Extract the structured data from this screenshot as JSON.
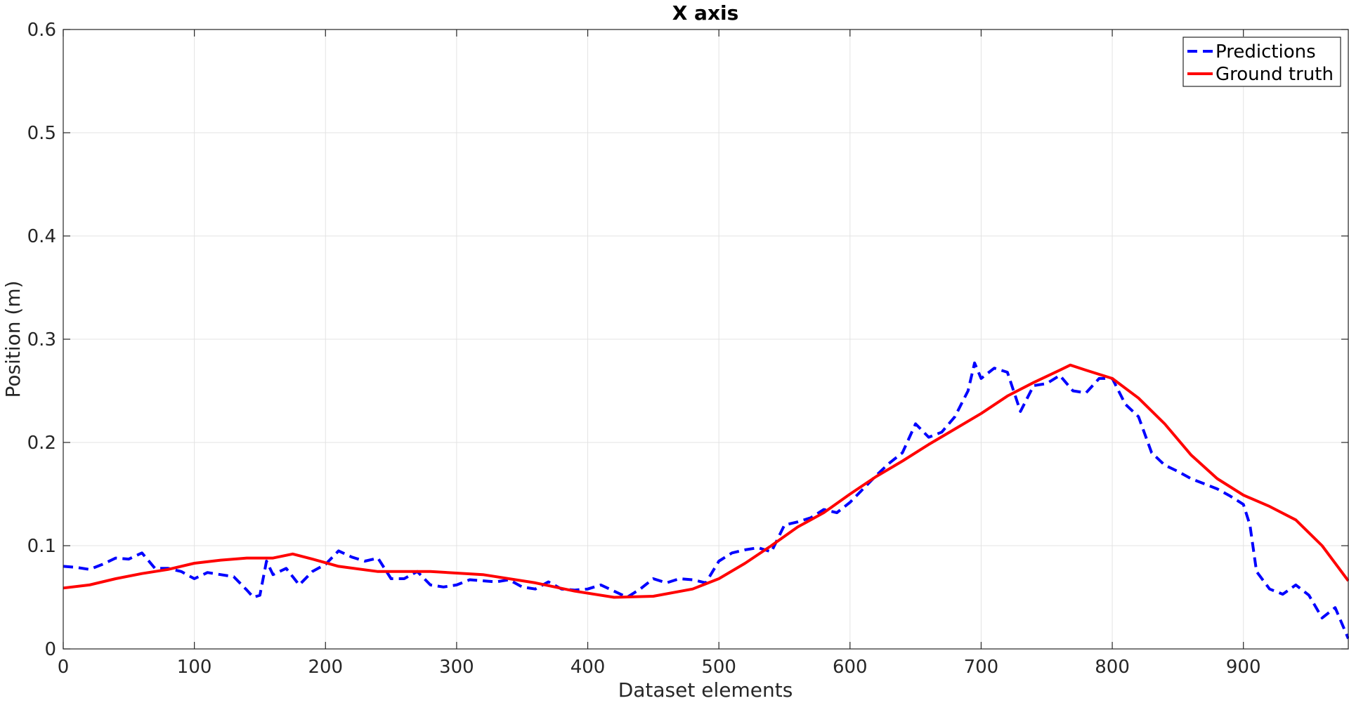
{
  "chart_data": {
    "type": "line",
    "title": "X axis",
    "xlabel": "Dataset elements",
    "ylabel": "Position (m)",
    "xlim": [
      0,
      980
    ],
    "ylim": [
      0,
      0.6
    ],
    "xticks": [
      0,
      100,
      200,
      300,
      400,
      500,
      600,
      700,
      800,
      900
    ],
    "xtick_labels": [
      "0",
      "100",
      "200",
      "300",
      "400",
      "500",
      "600",
      "700",
      "800",
      "900"
    ],
    "yticks": [
      0,
      0.1,
      0.2,
      0.3,
      0.4,
      0.5,
      0.6
    ],
    "ytick_labels": [
      "0",
      "0.1",
      "0.2",
      "0.3",
      "0.4",
      "0.5",
      "0.6"
    ],
    "grid": true,
    "legend_position": "top-right",
    "series": [
      {
        "name": "Predictions",
        "color": "#0000ff",
        "style": "dashed",
        "x": [
          0,
          10,
          20,
          30,
          40,
          50,
          60,
          70,
          80,
          90,
          100,
          110,
          120,
          130,
          140,
          145,
          150,
          155,
          160,
          170,
          180,
          190,
          200,
          210,
          220,
          230,
          240,
          250,
          260,
          270,
          280,
          290,
          300,
          310,
          320,
          330,
          340,
          350,
          360,
          370,
          380,
          390,
          400,
          410,
          420,
          430,
          440,
          450,
          460,
          470,
          480,
          490,
          500,
          510,
          520,
          530,
          540,
          550,
          560,
          570,
          580,
          590,
          600,
          610,
          620,
          630,
          640,
          650,
          660,
          670,
          680,
          690,
          695,
          700,
          710,
          720,
          730,
          740,
          750,
          760,
          770,
          780,
          790,
          800,
          810,
          820,
          830,
          840,
          850,
          860,
          870,
          880,
          890,
          900,
          905,
          910,
          920,
          930,
          940,
          950,
          960,
          970,
          980
        ],
        "values": [
          0.08,
          0.079,
          0.077,
          0.082,
          0.088,
          0.087,
          0.093,
          0.078,
          0.078,
          0.075,
          0.068,
          0.074,
          0.072,
          0.07,
          0.057,
          0.05,
          0.052,
          0.085,
          0.072,
          0.078,
          0.062,
          0.075,
          0.082,
          0.095,
          0.089,
          0.085,
          0.088,
          0.068,
          0.068,
          0.075,
          0.062,
          0.06,
          0.062,
          0.067,
          0.066,
          0.065,
          0.067,
          0.06,
          0.058,
          0.065,
          0.058,
          0.057,
          0.058,
          0.062,
          0.056,
          0.05,
          0.058,
          0.068,
          0.064,
          0.068,
          0.067,
          0.064,
          0.085,
          0.093,
          0.096,
          0.098,
          0.094,
          0.12,
          0.123,
          0.127,
          0.135,
          0.132,
          0.142,
          0.155,
          0.168,
          0.18,
          0.19,
          0.218,
          0.205,
          0.21,
          0.225,
          0.25,
          0.277,
          0.262,
          0.272,
          0.268,
          0.23,
          0.255,
          0.257,
          0.265,
          0.25,
          0.248,
          0.262,
          0.262,
          0.237,
          0.225,
          0.19,
          0.178,
          0.172,
          0.165,
          0.16,
          0.155,
          0.148,
          0.14,
          0.12,
          0.075,
          0.058,
          0.053,
          0.062,
          0.052,
          0.03,
          0.04,
          0.01
        ],
        "_cut": "values above are estimates read off the plot"
      },
      {
        "name": "Ground truth",
        "color": "#ff0000",
        "style": "solid",
        "x": [
          0,
          20,
          40,
          60,
          80,
          100,
          120,
          140,
          160,
          175,
          190,
          210,
          240,
          280,
          320,
          360,
          390,
          420,
          450,
          480,
          500,
          520,
          540,
          560,
          580,
          600,
          620,
          640,
          660,
          680,
          700,
          720,
          740,
          760,
          768,
          780,
          800,
          820,
          840,
          860,
          880,
          900,
          920,
          940,
          960,
          980
        ],
        "values": [
          0.059,
          0.062,
          0.068,
          0.073,
          0.077,
          0.083,
          0.086,
          0.088,
          0.088,
          0.092,
          0.087,
          0.08,
          0.075,
          0.075,
          0.072,
          0.064,
          0.056,
          0.05,
          0.051,
          0.058,
          0.068,
          0.083,
          0.1,
          0.118,
          0.132,
          0.15,
          0.167,
          0.182,
          0.198,
          0.213,
          0.228,
          0.245,
          0.258,
          0.27,
          0.275,
          0.27,
          0.262,
          0.243,
          0.218,
          0.188,
          0.165,
          0.149,
          0.138,
          0.125,
          0.1,
          0.066
        ]
      }
    ]
  }
}
